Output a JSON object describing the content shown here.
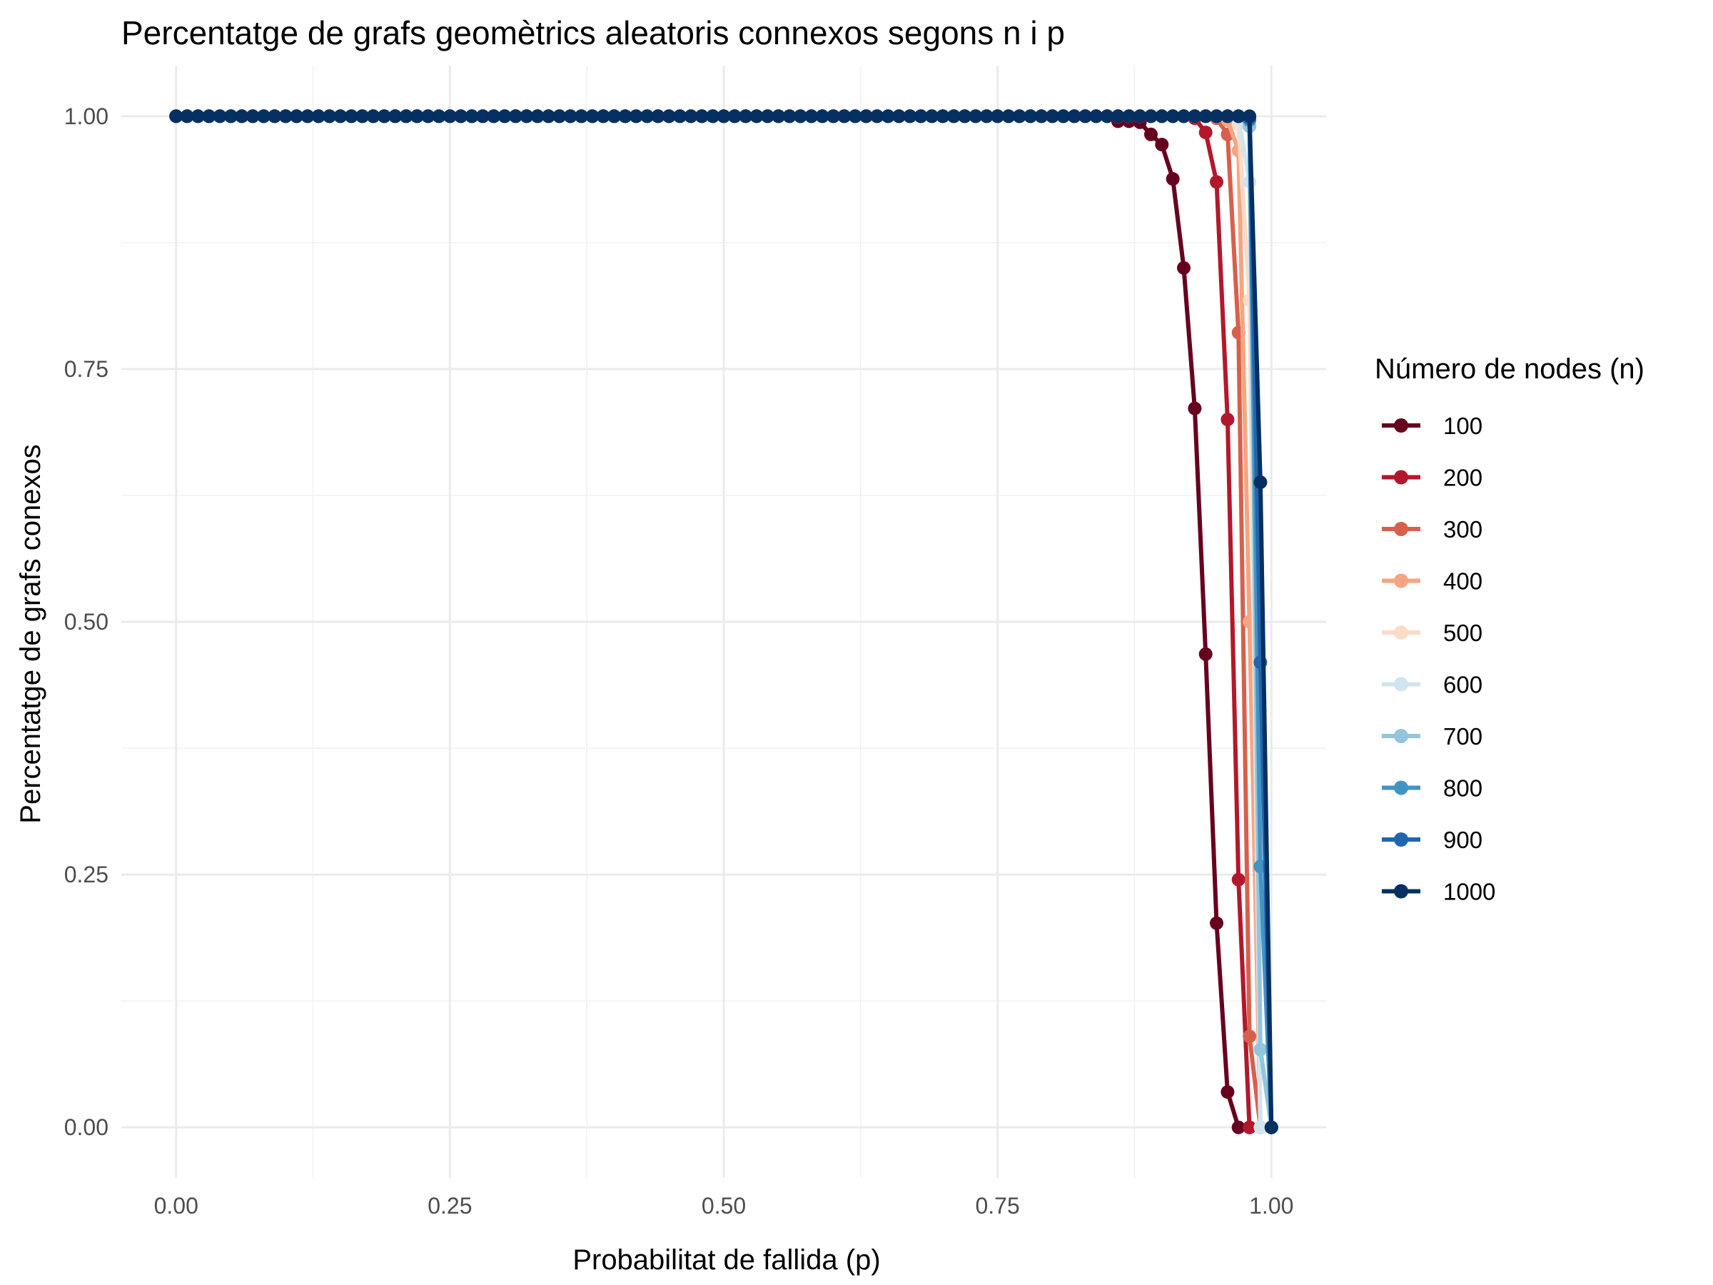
{
  "chart_data": {
    "type": "line",
    "title": "Percentatge de grafs geomètrics aleatoris connexos segons n i p",
    "xlabel": "Probabilitat de fallida (p)",
    "ylabel": "Percentatge de grafs conexos",
    "xlim": [
      -0.05,
      1.05
    ],
    "ylim": [
      -0.05,
      1.05
    ],
    "x_ticks": [
      0.0,
      0.25,
      0.5,
      0.75,
      1.0
    ],
    "x_tick_labels": [
      "0.00",
      "0.25",
      "0.50",
      "0.75",
      "1.00"
    ],
    "y_ticks": [
      0.0,
      0.25,
      0.5,
      0.75,
      1.0
    ],
    "y_tick_labels": [
      "0.00",
      "0.25",
      "0.50",
      "0.75",
      "1.00"
    ],
    "grid": true,
    "legend": {
      "title": "Número de nodes (n)",
      "position": "right"
    },
    "series": [
      {
        "name": "100",
        "color": "#67001f",
        "tail": [
          [
            0.86,
            0.995
          ],
          [
            0.87,
            0.995
          ],
          [
            0.88,
            0.994
          ],
          [
            0.89,
            0.982
          ],
          [
            0.9,
            0.972
          ],
          [
            0.91,
            0.938
          ],
          [
            0.92,
            0.85
          ],
          [
            0.93,
            0.711
          ],
          [
            0.94,
            0.468
          ],
          [
            0.95,
            0.202
          ],
          [
            0.96,
            0.035
          ],
          [
            0.97,
            0.0
          ],
          [
            0.98,
            0.0
          ],
          [
            0.99,
            0.0
          ],
          [
            1.0,
            0.0
          ]
        ]
      },
      {
        "name": "200",
        "color": "#b2182b",
        "tail": [
          [
            0.93,
            0.998
          ],
          [
            0.94,
            0.984
          ],
          [
            0.95,
            0.935
          ],
          [
            0.96,
            0.7
          ],
          [
            0.97,
            0.245
          ],
          [
            0.98,
            0.0
          ],
          [
            0.99,
            0.0
          ],
          [
            1.0,
            0.0
          ]
        ]
      },
      {
        "name": "300",
        "color": "#d6604d",
        "tail": [
          [
            0.95,
            0.998
          ],
          [
            0.96,
            0.982
          ],
          [
            0.97,
            0.786
          ],
          [
            0.98,
            0.09
          ],
          [
            0.99,
            0.0
          ],
          [
            1.0,
            0.0
          ]
        ]
      },
      {
        "name": "400",
        "color": "#f4a582",
        "tail": [
          [
            0.96,
            0.996
          ],
          [
            0.97,
            0.966
          ],
          [
            0.98,
            0.5
          ],
          [
            0.99,
            0.0
          ],
          [
            1.0,
            0.0
          ]
        ]
      },
      {
        "name": "500",
        "color": "#fddbc7",
        "tail": [
          [
            0.97,
            0.992
          ],
          [
            0.98,
            0.818
          ],
          [
            0.99,
            0.0
          ],
          [
            1.0,
            0.0
          ]
        ]
      },
      {
        "name": "600",
        "color": "#d1e5f0",
        "tail": [
          [
            0.97,
            0.998
          ],
          [
            0.98,
            0.935
          ],
          [
            0.99,
            0.0
          ],
          [
            1.0,
            0.0
          ]
        ]
      },
      {
        "name": "700",
        "color": "#92c5de",
        "tail": [
          [
            0.98,
            0.99
          ],
          [
            0.99,
            0.077
          ],
          [
            1.0,
            0.0
          ]
        ]
      },
      {
        "name": "800",
        "color": "#4393c3",
        "tail": [
          [
            0.98,
            0.996
          ],
          [
            0.99,
            0.258
          ],
          [
            1.0,
            0.0
          ]
        ]
      },
      {
        "name": "900",
        "color": "#2166ac",
        "tail": [
          [
            0.98,
            0.998
          ],
          [
            0.99,
            0.46
          ],
          [
            1.0,
            0.0
          ]
        ]
      },
      {
        "name": "1000",
        "color": "#053061",
        "tail": [
          [
            0.98,
            1.0
          ],
          [
            0.99,
            0.638
          ],
          [
            1.0,
            0.0
          ]
        ]
      }
    ],
    "series_note": "Each series equals 1.00 at every x from 0.00 in steps of 0.01 up to the first x listed in its tail."
  }
}
